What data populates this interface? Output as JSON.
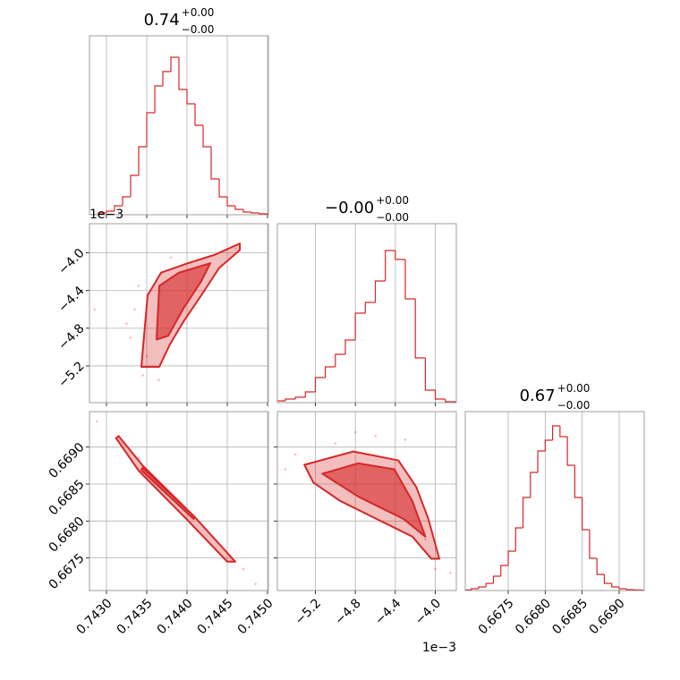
{
  "chart_data": [
    {
      "type": "histogram",
      "title": {
        "value": "0.74",
        "upper": "+0.00",
        "lower": "−0.00"
      },
      "color": "#d62728",
      "grid": true,
      "xlim": [
        0.742789,
        0.745011
      ],
      "xticks": [
        0.743,
        0.7435,
        0.744,
        0.7445,
        0.745
      ],
      "ylim": [
        0,
        100
      ],
      "bins": [
        0.7428,
        0.7429,
        0.743,
        0.7431,
        0.7432,
        0.7433,
        0.7434,
        0.7435,
        0.7436,
        0.7437,
        0.7438,
        0.7439,
        0.744,
        0.7441,
        0.7442,
        0.7443,
        0.7444,
        0.7445,
        0.7446,
        0.7447,
        0.7448,
        0.7449,
        0.745
      ],
      "counts": [
        0,
        1,
        2,
        5,
        10,
        22,
        38,
        57,
        72,
        80,
        88,
        70,
        62,
        50,
        38,
        20,
        10,
        5,
        3,
        1.5,
        1,
        0.5
      ]
    },
    {
      "type": "scatter",
      "color": "#d62728",
      "grid": true,
      "y_offset": "1e−3",
      "xlim": [
        0.742789,
        0.745011
      ],
      "xticks": [
        0.743,
        0.7435,
        0.744,
        0.7445,
        0.745
      ],
      "ylim": [
        -5.59,
        -3.69
      ],
      "yticks": [
        {
          "value": -5.2,
          "label": "−5.2"
        },
        {
          "value": -4.8,
          "label": "−4.8"
        },
        {
          "value": -4.4,
          "label": "−4.4"
        },
        {
          "value": -4.0,
          "label": "−4.0"
        }
      ],
      "points": {
        "x": [
          0.74335,
          0.7433,
          0.74345,
          0.7434,
          0.74365,
          0.7446,
          0.74325,
          0.7438,
          0.7435,
          0.74285
        ],
        "y": [
          -4.6,
          -4.9,
          -5.3,
          -4.35,
          -5.35,
          -3.95,
          -4.75,
          -4.05,
          -5.1,
          -4.6
        ]
      },
      "contours": [
        {
          "x": [
            0.743433,
            0.743511,
            0.743678,
            0.744011,
            0.744344,
            0.744656,
            0.744656,
            0.7444,
            0.744178,
            0.743956,
            0.743789,
            0.743656
          ],
          "y": [
            -5.21,
            -4.45,
            -4.21,
            -4.11,
            -4.02,
            -3.9,
            -3.97,
            -4.16,
            -4.45,
            -4.73,
            -4.97,
            -5.21
          ]
        },
        {
          "x": [
            0.743622,
            0.743656,
            0.7439,
            0.744289,
            0.744178,
            0.743956,
            0.743767
          ],
          "y": [
            -4.92,
            -4.35,
            -4.21,
            -4.11,
            -4.3,
            -4.59,
            -4.88
          ]
        }
      ]
    },
    {
      "type": "histogram",
      "title": {
        "value": "−0.00",
        "upper": "+0.00",
        "lower": "−0.00"
      },
      "color": "#d62728",
      "grid": true,
      "xlim": [
        -5.58,
        -3.79
      ],
      "xticks": [
        -5.2,
        -4.8,
        -4.4,
        -4.0
      ],
      "ylim": [
        0,
        100
      ],
      "bins": [
        -5.6,
        -5.5,
        -5.4,
        -5.3,
        -5.2,
        -5.1,
        -5.0,
        -4.9,
        -4.8,
        -4.7,
        -4.6,
        -4.5,
        -4.4,
        -4.3,
        -4.2,
        -4.1,
        -4.0,
        -3.9,
        -3.8
      ],
      "counts": [
        1,
        2,
        3,
        6,
        14,
        20,
        27,
        35,
        50,
        56,
        68,
        85,
        80,
        58,
        25,
        7,
        2,
        0.5
      ]
    },
    {
      "type": "scatter",
      "color": "#d62728",
      "grid": true,
      "xlim": [
        0.742789,
        0.745011
      ],
      "xticks": [
        {
          "value": 0.743,
          "label": "0.7430"
        },
        {
          "value": 0.7435,
          "label": "0.7435"
        },
        {
          "value": 0.744,
          "label": "0.7440"
        },
        {
          "value": 0.7445,
          "label": "0.7445"
        },
        {
          "value": 0.745,
          "label": "0.7450"
        }
      ],
      "ylim": [
        0.66706,
        0.66948
      ],
      "yticks": [
        {
          "value": 0.6675,
          "label": "0.6675"
        },
        {
          "value": 0.668,
          "label": "0.6680"
        },
        {
          "value": 0.6685,
          "label": "0.6685"
        },
        {
          "value": 0.669,
          "label": "0.6690"
        }
      ],
      "points": {
        "x": [
          0.74288,
          0.7432,
          0.7447,
          0.74485,
          0.7434,
          0.74455
        ],
        "y": [
          0.66935,
          0.66905,
          0.66735,
          0.66715,
          0.66885,
          0.6675
        ]
      },
      "contours": [
        {
          "x": [
            0.74315,
            0.74345,
            0.7441,
            0.7446,
            0.7445,
            0.744,
            0.7434,
            0.74312
          ],
          "y": [
            0.66915,
            0.66875,
            0.66805,
            0.66745,
            0.66745,
            0.66802,
            0.66868,
            0.66912
          ]
        },
        {
          "x": [
            0.74345,
            0.7441,
            0.74408,
            0.74343
          ],
          "y": [
            0.66872,
            0.66805,
            0.66803,
            0.66869
          ]
        }
      ]
    },
    {
      "type": "scatter",
      "color": "#d62728",
      "grid": true,
      "x_offset": "1e−3",
      "xlim": [
        -5.58,
        -3.79
      ],
      "xticks": [
        {
          "value": -5.2,
          "label": "−5.2"
        },
        {
          "value": -4.8,
          "label": "−4.8"
        },
        {
          "value": -4.4,
          "label": "−4.4"
        },
        {
          "value": -4.0,
          "label": "−4.0"
        }
      ],
      "ylim": [
        0.66706,
        0.66948
      ],
      "yticks": [
        0.6675,
        0.668,
        0.6685,
        0.669
      ],
      "points": {
        "x": [
          -5.4,
          -5.0,
          -4.6,
          -4.3,
          -4.0,
          -3.85,
          -5.5,
          -4.8,
          -4.1
        ],
        "y": [
          0.6689,
          0.66905,
          0.66915,
          0.6691,
          0.66735,
          0.6673,
          0.6687,
          0.6692,
          0.66775
        ]
      },
      "contours": [
        {
          "x": [
            -5.31,
            -4.82,
            -4.37,
            -4.19,
            -4.07,
            -3.96,
            -4.04,
            -4.23,
            -4.59,
            -4.95,
            -5.22
          ],
          "y": [
            0.66876,
            0.66894,
            0.66882,
            0.66846,
            0.66803,
            0.66749,
            0.66749,
            0.66779,
            0.66803,
            0.66827,
            0.66852
          ]
        },
        {
          "x": [
            -5.13,
            -4.77,
            -4.41,
            -4.23,
            -4.1,
            -4.32,
            -4.77
          ],
          "y": [
            0.66864,
            0.66878,
            0.6687,
            0.66827,
            0.66779,
            0.66803,
            0.66833
          ]
        }
      ]
    },
    {
      "type": "histogram",
      "title": {
        "value": "0.67",
        "upper": "+0.00",
        "lower": "−0.00"
      },
      "color": "#d62728",
      "grid": true,
      "xlim": [
        0.666919,
        0.669339
      ],
      "xticks": [
        {
          "value": 0.6675,
          "label": "0.6675"
        },
        {
          "value": 0.668,
          "label": "0.6680"
        },
        {
          "value": 0.6685,
          "label": "0.6685"
        },
        {
          "value": 0.669,
          "label": "0.6690"
        }
      ],
      "ylim": [
        0,
        100
      ],
      "bins": [
        0.6669,
        0.667,
        0.6671,
        0.6672,
        0.6673,
        0.6674,
        0.6675,
        0.6676,
        0.6677,
        0.6678,
        0.6679,
        0.668,
        0.6681,
        0.6682,
        0.6683,
        0.6684,
        0.6685,
        0.6686,
        0.6687,
        0.6688,
        0.6689,
        0.669,
        0.6691,
        0.6692,
        0.6693,
        0.6694
      ],
      "counts": [
        0.3,
        1,
        2,
        4,
        8,
        14,
        22,
        35,
        52,
        66,
        78,
        84,
        92,
        86,
        70,
        52,
        34,
        18,
        9,
        4,
        2,
        1,
        0.5,
        0.3,
        0.2
      ]
    }
  ]
}
